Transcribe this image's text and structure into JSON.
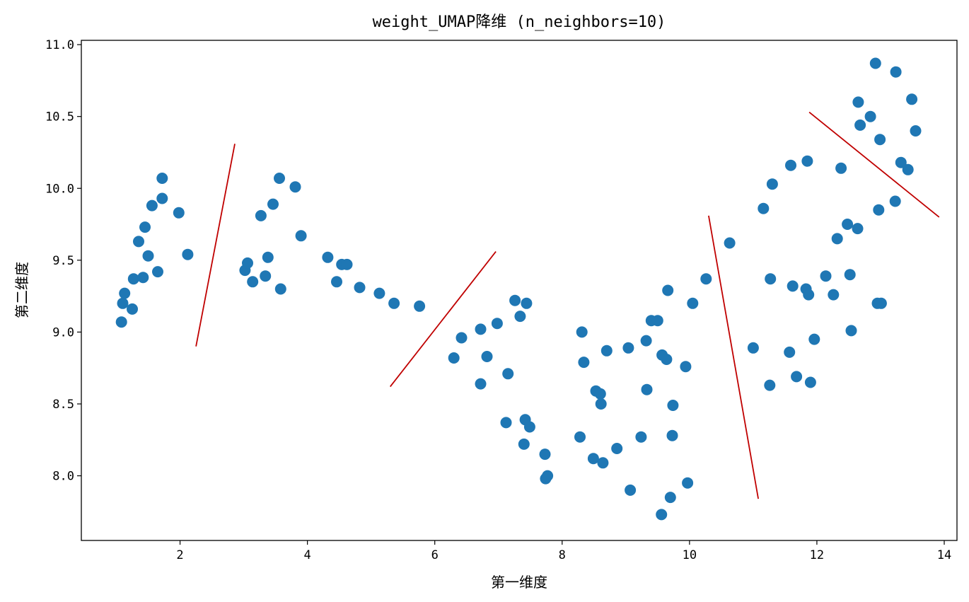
{
  "chart_data": {
    "type": "scatter",
    "title": "weight_UMAP降维 (n_neighbors=10)",
    "xlabel": "第一维度",
    "ylabel": "第二维度",
    "xlim": [
      0.45,
      14.2
    ],
    "ylim": [
      7.55,
      11.03
    ],
    "x_ticks": [
      2,
      4,
      6,
      8,
      10,
      12,
      14
    ],
    "y_ticks": [
      8.0,
      8.5,
      9.0,
      9.5,
      10.0,
      10.5,
      11.0
    ],
    "x_tick_labels": [
      "2",
      "4",
      "6",
      "8",
      "10",
      "12",
      "14"
    ],
    "y_tick_labels": [
      "8.0",
      "8.5",
      "9.0",
      "9.5",
      "10.0",
      "10.5",
      "11.0"
    ],
    "grid": false,
    "point_color": "#1f77b4",
    "line_color": "#c00000",
    "points": [
      [
        1.08,
        9.07
      ],
      [
        1.1,
        9.2
      ],
      [
        1.13,
        9.27
      ],
      [
        1.25,
        9.16
      ],
      [
        1.27,
        9.37
      ],
      [
        1.35,
        9.63
      ],
      [
        1.42,
        9.38
      ],
      [
        1.45,
        9.73
      ],
      [
        1.5,
        9.53
      ],
      [
        1.56,
        9.88
      ],
      [
        1.65,
        9.42
      ],
      [
        1.72,
        10.07
      ],
      [
        1.72,
        9.93
      ],
      [
        1.98,
        9.83
      ],
      [
        2.12,
        9.54
      ],
      [
        3.02,
        9.43
      ],
      [
        3.06,
        9.48
      ],
      [
        3.14,
        9.35
      ],
      [
        3.27,
        9.81
      ],
      [
        3.34,
        9.39
      ],
      [
        3.38,
        9.52
      ],
      [
        3.46,
        9.89
      ],
      [
        3.56,
        10.07
      ],
      [
        3.58,
        9.3
      ],
      [
        3.81,
        10.01
      ],
      [
        3.9,
        9.67
      ],
      [
        4.32,
        9.52
      ],
      [
        4.46,
        9.35
      ],
      [
        4.54,
        9.47
      ],
      [
        4.62,
        9.47
      ],
      [
        4.82,
        9.31
      ],
      [
        5.13,
        9.27
      ],
      [
        5.36,
        9.2
      ],
      [
        5.76,
        9.18
      ],
      [
        6.3,
        8.82
      ],
      [
        6.42,
        8.96
      ],
      [
        6.72,
        9.02
      ],
      [
        6.72,
        8.64
      ],
      [
        6.82,
        8.83
      ],
      [
        6.98,
        9.06
      ],
      [
        7.12,
        8.37
      ],
      [
        7.15,
        8.71
      ],
      [
        7.26,
        9.22
      ],
      [
        7.34,
        9.11
      ],
      [
        7.4,
        8.22
      ],
      [
        7.42,
        8.39
      ],
      [
        7.44,
        9.2
      ],
      [
        7.49,
        8.34
      ],
      [
        7.73,
        8.15
      ],
      [
        7.74,
        7.98
      ],
      [
        7.77,
        8.0
      ],
      [
        8.28,
        8.27
      ],
      [
        8.31,
        9.0
      ],
      [
        8.34,
        8.79
      ],
      [
        8.49,
        8.12
      ],
      [
        8.53,
        8.59
      ],
      [
        8.6,
        8.57
      ],
      [
        8.61,
        8.5
      ],
      [
        8.64,
        8.09
      ],
      [
        8.7,
        8.87
      ],
      [
        8.86,
        8.19
      ],
      [
        9.04,
        8.89
      ],
      [
        9.07,
        7.9
      ],
      [
        9.24,
        8.27
      ],
      [
        9.32,
        8.94
      ],
      [
        9.33,
        8.6
      ],
      [
        9.4,
        9.08
      ],
      [
        9.5,
        9.08
      ],
      [
        9.56,
        7.73
      ],
      [
        9.57,
        8.84
      ],
      [
        9.64,
        8.81
      ],
      [
        9.66,
        9.29
      ],
      [
        9.7,
        7.85
      ],
      [
        9.73,
        8.28
      ],
      [
        9.74,
        8.49
      ],
      [
        9.94,
        8.76
      ],
      [
        9.97,
        7.95
      ],
      [
        10.05,
        9.2
      ],
      [
        10.26,
        9.37
      ],
      [
        10.63,
        9.62
      ],
      [
        11.0,
        8.89
      ],
      [
        11.16,
        9.86
      ],
      [
        11.26,
        8.63
      ],
      [
        11.27,
        9.37
      ],
      [
        11.3,
        10.03
      ],
      [
        11.57,
        8.86
      ],
      [
        11.59,
        10.16
      ],
      [
        11.62,
        9.32
      ],
      [
        11.68,
        8.69
      ],
      [
        11.83,
        9.3
      ],
      [
        11.85,
        10.19
      ],
      [
        11.87,
        9.26
      ],
      [
        11.9,
        8.65
      ],
      [
        11.96,
        8.95
      ],
      [
        12.14,
        9.39
      ],
      [
        12.26,
        9.26
      ],
      [
        12.32,
        9.65
      ],
      [
        12.38,
        10.14
      ],
      [
        12.48,
        9.75
      ],
      [
        12.52,
        9.4
      ],
      [
        12.54,
        9.01
      ],
      [
        12.64,
        9.72
      ],
      [
        12.65,
        10.6
      ],
      [
        12.68,
        10.44
      ],
      [
        12.84,
        10.5
      ],
      [
        12.92,
        10.87
      ],
      [
        12.95,
        9.2
      ],
      [
        12.97,
        9.85
      ],
      [
        12.99,
        10.34
      ],
      [
        13.01,
        9.2
      ],
      [
        13.23,
        9.91
      ],
      [
        13.24,
        10.81
      ],
      [
        13.32,
        10.18
      ],
      [
        13.43,
        10.13
      ],
      [
        13.49,
        10.62
      ],
      [
        13.55,
        10.4
      ]
    ],
    "lines": [
      [
        [
          2.25,
          8.9
        ],
        [
          2.86,
          10.31
        ]
      ],
      [
        [
          5.3,
          8.62
        ],
        [
          6.96,
          9.56
        ]
      ],
      [
        [
          10.3,
          9.81
        ],
        [
          11.08,
          7.84
        ]
      ],
      [
        [
          11.88,
          10.53
        ],
        [
          13.92,
          9.8
        ]
      ]
    ]
  }
}
